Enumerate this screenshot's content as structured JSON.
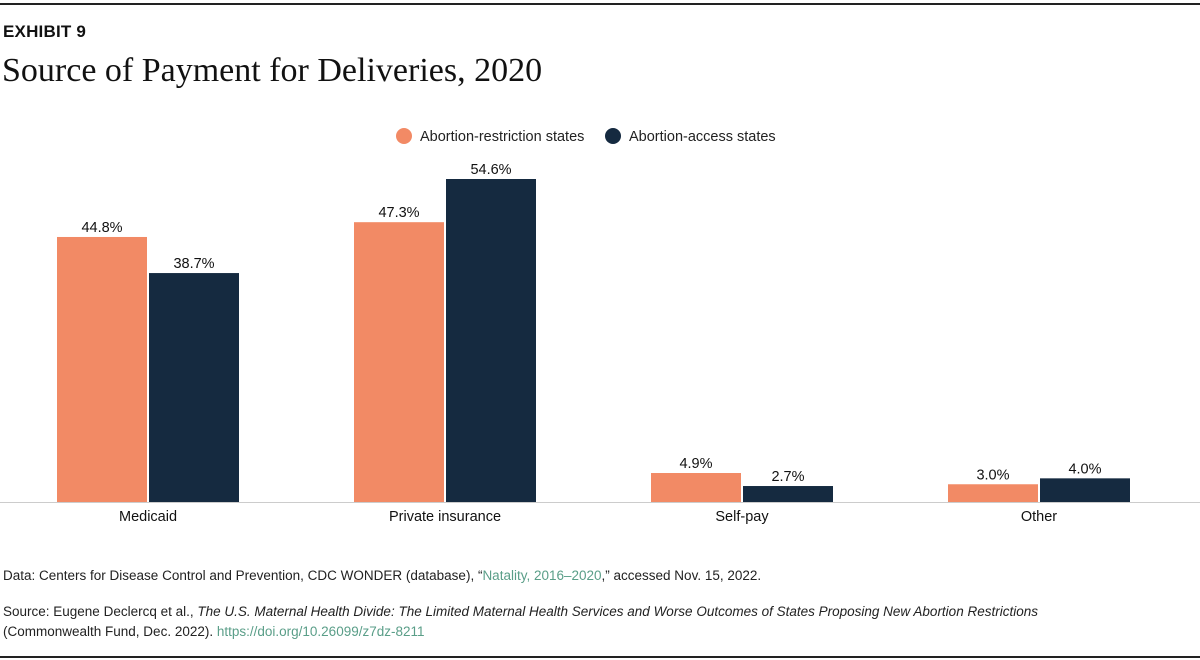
{
  "exhibit_label": "EXHIBIT 9",
  "chart_data": {
    "type": "bar",
    "title": "Source of Payment for Deliveries, 2020",
    "categories": [
      "Medicaid",
      "Private insurance",
      "Self-pay",
      "Other"
    ],
    "series": [
      {
        "name": "Abortion-restriction states",
        "color": "#f28a65",
        "values": [
          44.8,
          47.3,
          4.9,
          3.0
        ],
        "labels": [
          "44.8%",
          "47.3%",
          "4.9%",
          "3.0%"
        ]
      },
      {
        "name": "Abortion-access states",
        "color": "#152a40",
        "values": [
          38.7,
          54.6,
          2.7,
          4.0
        ],
        "labels": [
          "38.7%",
          "54.6%",
          "2.7%",
          "4.0%"
        ]
      }
    ],
    "ylim": [
      0,
      54.6
    ],
    "grid": false,
    "legend_placement": "top-center"
  },
  "footer": {
    "data_prefix": "Data: Centers for Disease Control and Prevention, CDC WONDER (database), “",
    "data_link": "Natality, 2016–2020",
    "data_suffix": ",” accessed Nov. 15, 2022.",
    "source_prefix": "Source: Eugene Declercq et al., ",
    "source_title": "The U.S. Maternal Health Divide: The Limited Maternal Health Services and Worse Outcomes of States Proposing New Abortion Restrictions",
    "source_suffix": "(Commonwealth Fund, Dec. 2022). ",
    "source_link": "https://doi.org/10.26099/z7dz-8211"
  }
}
